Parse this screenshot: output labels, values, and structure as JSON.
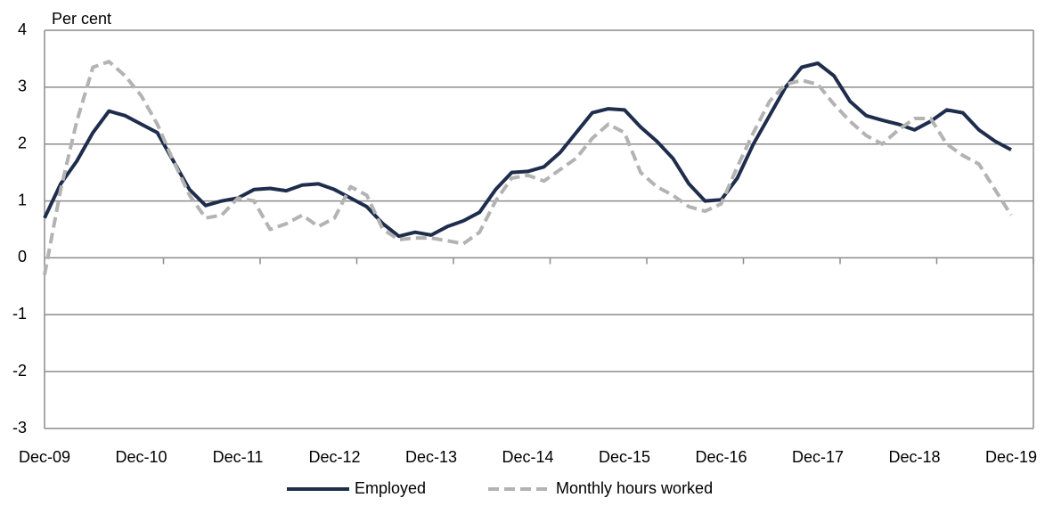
{
  "chart_data": {
    "type": "line",
    "y_label": "Per cent",
    "categories": [
      "Dec-09",
      null,
      null,
      null,
      null,
      null,
      "Dec-10",
      null,
      null,
      null,
      null,
      null,
      "Dec-11",
      null,
      null,
      null,
      null,
      null,
      "Dec-12",
      null,
      null,
      null,
      null,
      null,
      "Dec-13",
      null,
      null,
      null,
      null,
      null,
      "Dec-14",
      null,
      null,
      null,
      null,
      null,
      "Dec-15",
      null,
      null,
      null,
      null,
      null,
      "Dec-16",
      null,
      null,
      null,
      null,
      null,
      "Dec-17",
      null,
      null,
      null,
      null,
      null,
      "Dec-18",
      null,
      null,
      null,
      null,
      null,
      "Dec-19"
    ],
    "series": [
      {
        "name": "Employed",
        "color": "#1f2d4d",
        "dashed": false,
        "values": [
          0.7,
          1.3,
          1.7,
          2.2,
          2.58,
          2.5,
          2.35,
          2.2,
          1.7,
          1.2,
          0.92,
          1.0,
          1.05,
          1.2,
          1.22,
          1.18,
          1.28,
          1.3,
          1.2,
          1.05,
          0.9,
          0.6,
          0.38,
          0.45,
          0.4,
          0.55,
          0.65,
          0.8,
          1.2,
          1.5,
          1.52,
          1.6,
          1.85,
          2.2,
          2.55,
          2.62,
          2.6,
          2.3,
          2.05,
          1.75,
          1.3,
          1.0,
          1.02,
          1.4,
          2.0,
          2.5,
          3.0,
          3.35,
          3.42,
          3.2,
          2.75,
          2.5,
          2.42,
          2.35,
          2.25,
          2.4,
          2.6,
          2.55,
          2.25,
          2.05,
          1.9
        ]
      },
      {
        "name": "Monthly hours worked",
        "color": "#b3b3b3",
        "dashed": true,
        "values": [
          -0.3,
          1.2,
          2.4,
          3.35,
          3.45,
          3.2,
          2.85,
          2.35,
          1.7,
          1.1,
          0.7,
          0.75,
          1.05,
          1.0,
          0.5,
          0.6,
          0.75,
          0.55,
          0.7,
          1.25,
          1.1,
          0.5,
          0.32,
          0.35,
          0.35,
          0.3,
          0.25,
          0.45,
          1.0,
          1.4,
          1.45,
          1.35,
          1.55,
          1.75,
          2.1,
          2.35,
          2.2,
          1.5,
          1.25,
          1.1,
          0.9,
          0.82,
          0.95,
          1.6,
          2.2,
          2.75,
          3.05,
          3.12,
          3.05,
          2.7,
          2.4,
          2.15,
          2.0,
          2.25,
          2.45,
          2.45,
          2.0,
          1.8,
          1.65,
          1.2,
          0.75
        ]
      }
    ],
    "ylim": [
      -3,
      4
    ],
    "yticks": [
      -3,
      -2,
      -1,
      0,
      1,
      2,
      3,
      4
    ],
    "grid": true
  }
}
